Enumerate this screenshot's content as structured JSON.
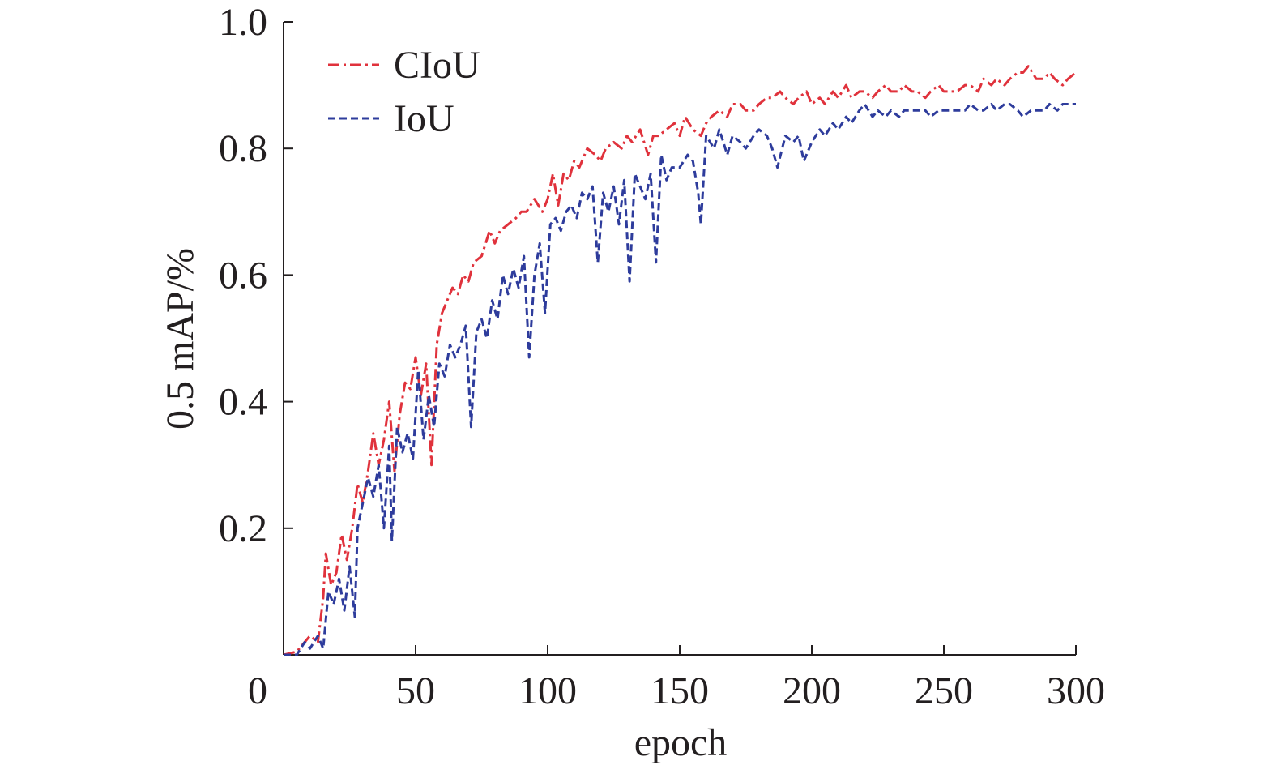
{
  "chart_data": {
    "type": "line",
    "title": "",
    "xlabel": "epoch",
    "ylabel": "0.5 mAP/%",
    "xlim": [
      0,
      300
    ],
    "ylim": [
      0,
      1.0
    ],
    "x_ticks": [
      0,
      50,
      100,
      150,
      200,
      250,
      300
    ],
    "x_tick_labels": [
      "0",
      "50",
      "100",
      "150",
      "200",
      "250",
      "300"
    ],
    "y_ticks": [
      0.2,
      0.4,
      0.6,
      0.8,
      1.0
    ],
    "y_tick_labels": [
      "0.2",
      "0.4",
      "0.6",
      "0.8",
      "1.0"
    ],
    "grid": false,
    "legend_position": "top-left",
    "series": [
      {
        "name": "CIoU",
        "color": "#e0323c",
        "style": "dash-dot",
        "points": [
          [
            0,
            0.0
          ],
          [
            5,
            0.005
          ],
          [
            10,
            0.03
          ],
          [
            13,
            0.02
          ],
          [
            15,
            0.09
          ],
          [
            16,
            0.16
          ],
          [
            18,
            0.11
          ],
          [
            20,
            0.13
          ],
          [
            22,
            0.19
          ],
          [
            24,
            0.15
          ],
          [
            26,
            0.2
          ],
          [
            28,
            0.27
          ],
          [
            30,
            0.24
          ],
          [
            32,
            0.29
          ],
          [
            34,
            0.35
          ],
          [
            36,
            0.3
          ],
          [
            38,
            0.34
          ],
          [
            40,
            0.4
          ],
          [
            42,
            0.29
          ],
          [
            44,
            0.38
          ],
          [
            46,
            0.43
          ],
          [
            48,
            0.42
          ],
          [
            50,
            0.47
          ],
          [
            52,
            0.41
          ],
          [
            54,
            0.46
          ],
          [
            56,
            0.3
          ],
          [
            58,
            0.49
          ],
          [
            60,
            0.54
          ],
          [
            62,
            0.56
          ],
          [
            64,
            0.58
          ],
          [
            66,
            0.57
          ],
          [
            68,
            0.6
          ],
          [
            70,
            0.59
          ],
          [
            72,
            0.62
          ],
          [
            75,
            0.63
          ],
          [
            78,
            0.67
          ],
          [
            80,
            0.65
          ],
          [
            82,
            0.67
          ],
          [
            85,
            0.68
          ],
          [
            88,
            0.69
          ],
          [
            90,
            0.7
          ],
          [
            92,
            0.7
          ],
          [
            95,
            0.72
          ],
          [
            98,
            0.7
          ],
          [
            100,
            0.72
          ],
          [
            102,
            0.76
          ],
          [
            104,
            0.71
          ],
          [
            106,
            0.76
          ],
          [
            108,
            0.75
          ],
          [
            110,
            0.78
          ],
          [
            112,
            0.77
          ],
          [
            115,
            0.8
          ],
          [
            118,
            0.79
          ],
          [
            120,
            0.78
          ],
          [
            122,
            0.8
          ],
          [
            125,
            0.81
          ],
          [
            128,
            0.8
          ],
          [
            130,
            0.82
          ],
          [
            132,
            0.81
          ],
          [
            135,
            0.83
          ],
          [
            138,
            0.79
          ],
          [
            140,
            0.82
          ],
          [
            142,
            0.82
          ],
          [
            145,
            0.83
          ],
          [
            148,
            0.84
          ],
          [
            150,
            0.82
          ],
          [
            152,
            0.85
          ],
          [
            155,
            0.83
          ],
          [
            158,
            0.82
          ],
          [
            160,
            0.84
          ],
          [
            162,
            0.85
          ],
          [
            165,
            0.86
          ],
          [
            168,
            0.85
          ],
          [
            170,
            0.87
          ],
          [
            173,
            0.87
          ],
          [
            175,
            0.86
          ],
          [
            178,
            0.86
          ],
          [
            180,
            0.87
          ],
          [
            183,
            0.88
          ],
          [
            185,
            0.88
          ],
          [
            188,
            0.89
          ],
          [
            190,
            0.88
          ],
          [
            193,
            0.87
          ],
          [
            195,
            0.88
          ],
          [
            198,
            0.89
          ],
          [
            200,
            0.87
          ],
          [
            203,
            0.88
          ],
          [
            205,
            0.87
          ],
          [
            208,
            0.89
          ],
          [
            210,
            0.88
          ],
          [
            213,
            0.9
          ],
          [
            215,
            0.88
          ],
          [
            218,
            0.89
          ],
          [
            220,
            0.89
          ],
          [
            223,
            0.88
          ],
          [
            225,
            0.89
          ],
          [
            228,
            0.9
          ],
          [
            230,
            0.89
          ],
          [
            233,
            0.89
          ],
          [
            235,
            0.9
          ],
          [
            238,
            0.89
          ],
          [
            240,
            0.89
          ],
          [
            243,
            0.88
          ],
          [
            245,
            0.89
          ],
          [
            248,
            0.9
          ],
          [
            250,
            0.89
          ],
          [
            253,
            0.89
          ],
          [
            255,
            0.89
          ],
          [
            258,
            0.9
          ],
          [
            260,
            0.9
          ],
          [
            263,
            0.89
          ],
          [
            265,
            0.91
          ],
          [
            268,
            0.9
          ],
          [
            270,
            0.91
          ],
          [
            273,
            0.9
          ],
          [
            275,
            0.91
          ],
          [
            278,
            0.92
          ],
          [
            280,
            0.92
          ],
          [
            282,
            0.93
          ],
          [
            285,
            0.91
          ],
          [
            288,
            0.91
          ],
          [
            290,
            0.92
          ],
          [
            292,
            0.91
          ],
          [
            295,
            0.9
          ],
          [
            297,
            0.91
          ],
          [
            300,
            0.92
          ]
        ]
      },
      {
        "name": "IoU",
        "color": "#2e3c9c",
        "style": "dashed",
        "points": [
          [
            0,
            0.0
          ],
          [
            5,
            0.0
          ],
          [
            8,
            0.02
          ],
          [
            10,
            0.01
          ],
          [
            13,
            0.03
          ],
          [
            15,
            0.01
          ],
          [
            17,
            0.1
          ],
          [
            19,
            0.08
          ],
          [
            21,
            0.12
          ],
          [
            23,
            0.07
          ],
          [
            25,
            0.14
          ],
          [
            27,
            0.06
          ],
          [
            28,
            0.2
          ],
          [
            30,
            0.24
          ],
          [
            32,
            0.28
          ],
          [
            34,
            0.25
          ],
          [
            36,
            0.3
          ],
          [
            38,
            0.2
          ],
          [
            40,
            0.33
          ],
          [
            41,
            0.18
          ],
          [
            43,
            0.36
          ],
          [
            45,
            0.32
          ],
          [
            47,
            0.35
          ],
          [
            49,
            0.31
          ],
          [
            51,
            0.45
          ],
          [
            53,
            0.34
          ],
          [
            55,
            0.41
          ],
          [
            57,
            0.36
          ],
          [
            59,
            0.46
          ],
          [
            61,
            0.44
          ],
          [
            63,
            0.49
          ],
          [
            65,
            0.47
          ],
          [
            67,
            0.49
          ],
          [
            69,
            0.52
          ],
          [
            71,
            0.36
          ],
          [
            73,
            0.51
          ],
          [
            75,
            0.53
          ],
          [
            77,
            0.5
          ],
          [
            79,
            0.56
          ],
          [
            81,
            0.53
          ],
          [
            83,
            0.6
          ],
          [
            85,
            0.57
          ],
          [
            87,
            0.61
          ],
          [
            89,
            0.58
          ],
          [
            91,
            0.63
          ],
          [
            93,
            0.47
          ],
          [
            95,
            0.6
          ],
          [
            97,
            0.65
          ],
          [
            99,
            0.54
          ],
          [
            101,
            0.68
          ],
          [
            103,
            0.69
          ],
          [
            105,
            0.67
          ],
          [
            107,
            0.7
          ],
          [
            109,
            0.71
          ],
          [
            111,
            0.69
          ],
          [
            113,
            0.73
          ],
          [
            115,
            0.72
          ],
          [
            117,
            0.74
          ],
          [
            119,
            0.62
          ],
          [
            121,
            0.73
          ],
          [
            123,
            0.7
          ],
          [
            125,
            0.74
          ],
          [
            127,
            0.68
          ],
          [
            129,
            0.75
          ],
          [
            131,
            0.59
          ],
          [
            133,
            0.76
          ],
          [
            135,
            0.74
          ],
          [
            137,
            0.72
          ],
          [
            139,
            0.76
          ],
          [
            141,
            0.62
          ],
          [
            143,
            0.79
          ],
          [
            145,
            0.75
          ],
          [
            147,
            0.77
          ],
          [
            150,
            0.77
          ],
          [
            153,
            0.79
          ],
          [
            155,
            0.78
          ],
          [
            157,
            0.73
          ],
          [
            158,
            0.68
          ],
          [
            160,
            0.82
          ],
          [
            163,
            0.8
          ],
          [
            165,
            0.83
          ],
          [
            168,
            0.79
          ],
          [
            170,
            0.82
          ],
          [
            173,
            0.81
          ],
          [
            175,
            0.8
          ],
          [
            178,
            0.82
          ],
          [
            180,
            0.83
          ],
          [
            183,
            0.82
          ],
          [
            185,
            0.8
          ],
          [
            187,
            0.77
          ],
          [
            190,
            0.82
          ],
          [
            193,
            0.81
          ],
          [
            195,
            0.82
          ],
          [
            197,
            0.78
          ],
          [
            200,
            0.81
          ],
          [
            203,
            0.83
          ],
          [
            205,
            0.82
          ],
          [
            208,
            0.84
          ],
          [
            210,
            0.83
          ],
          [
            213,
            0.85
          ],
          [
            215,
            0.84
          ],
          [
            218,
            0.86
          ],
          [
            220,
            0.87
          ],
          [
            223,
            0.85
          ],
          [
            225,
            0.86
          ],
          [
            228,
            0.85
          ],
          [
            230,
            0.86
          ],
          [
            233,
            0.85
          ],
          [
            235,
            0.86
          ],
          [
            238,
            0.86
          ],
          [
            240,
            0.86
          ],
          [
            243,
            0.86
          ],
          [
            245,
            0.85
          ],
          [
            248,
            0.86
          ],
          [
            250,
            0.86
          ],
          [
            253,
            0.86
          ],
          [
            255,
            0.86
          ],
          [
            258,
            0.86
          ],
          [
            260,
            0.87
          ],
          [
            263,
            0.86
          ],
          [
            265,
            0.86
          ],
          [
            268,
            0.87
          ],
          [
            270,
            0.86
          ],
          [
            273,
            0.87
          ],
          [
            275,
            0.87
          ],
          [
            278,
            0.86
          ],
          [
            280,
            0.85
          ],
          [
            283,
            0.86
          ],
          [
            285,
            0.86
          ],
          [
            288,
            0.86
          ],
          [
            290,
            0.87
          ],
          [
            293,
            0.86
          ],
          [
            295,
            0.87
          ],
          [
            298,
            0.87
          ],
          [
            300,
            0.87
          ]
        ]
      }
    ]
  }
}
